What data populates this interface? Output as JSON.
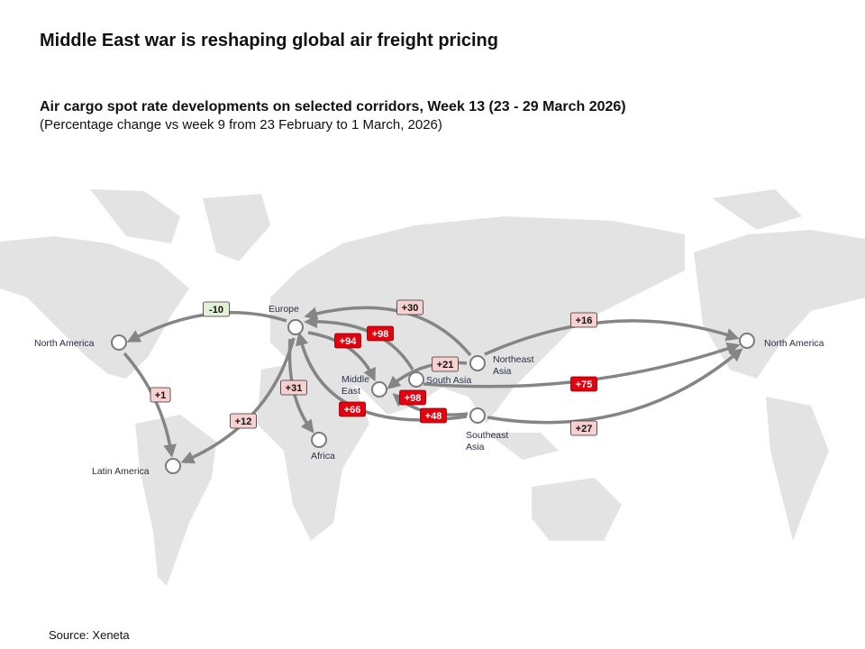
{
  "title": "Middle East war is reshaping global air freight pricing",
  "subtitle": "Air cargo spot rate developments on selected corridors, Week 13 (23 - 29 March 2026)",
  "note": "(Percentage change vs week 9 from 23 February to 1 March, 2026)",
  "source": "Source: Xeneta",
  "colors": {
    "increase_high": "#e3000f",
    "increase_low": "#f9d0d0",
    "decrease": "#e3f1d8",
    "route": "#858585",
    "land": "#e3e3e3"
  },
  "regions": {
    "europe": "Europe",
    "north_america_west": "North America",
    "north_america_east": "North America",
    "latin_america": "Latin America",
    "africa": "Africa",
    "middle_east": [
      "Middle",
      "East"
    ],
    "south_asia": "South Asia",
    "northeast_asia": [
      "Northeast",
      "Asia"
    ],
    "southeast_asia": [
      "Southeast",
      "Asia"
    ]
  },
  "corridors": [
    {
      "from": "Europe",
      "to": "North America",
      "change": "-10",
      "level": "decrease"
    },
    {
      "from": "North America",
      "to": "Latin America",
      "change": "+1",
      "level": "increase_low"
    },
    {
      "from": "Europe",
      "to": "Latin America",
      "change": "+12",
      "level": "increase_low"
    },
    {
      "from": "Europe",
      "to": "Africa",
      "change": "+31",
      "level": "increase_low"
    },
    {
      "from": "Europe",
      "to": "Middle East",
      "change": "+94",
      "level": "increase_high"
    },
    {
      "from": "South Asia",
      "to": "Europe",
      "change": "+98",
      "level": "increase_high"
    },
    {
      "from": "Northeast Asia",
      "to": "Europe",
      "change": "+30",
      "level": "increase_low"
    },
    {
      "from": "Southeast Asia",
      "to": "Europe",
      "change": "+66",
      "level": "increase_high"
    },
    {
      "from": "Northeast Asia",
      "to": "Middle East",
      "change": "+21",
      "level": "increase_low"
    },
    {
      "from": "South Asia",
      "to": "Middle East",
      "change": "+98",
      "level": "increase_high"
    },
    {
      "from": "Southeast Asia",
      "to": "Middle East",
      "change": "+48",
      "level": "increase_high"
    },
    {
      "from": "Northeast Asia",
      "to": "North America",
      "change": "+16",
      "level": "increase_low"
    },
    {
      "from": "South Asia",
      "to": "North America",
      "change": "+75",
      "level": "increase_high"
    },
    {
      "from": "Southeast Asia",
      "to": "North America",
      "change": "+27",
      "level": "increase_low"
    }
  ]
}
